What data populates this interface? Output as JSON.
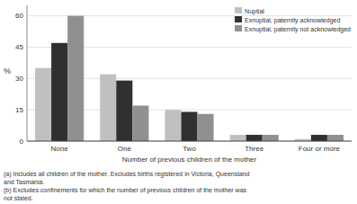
{
  "chart_data": {
    "type": "bar",
    "categories": [
      "None",
      "One",
      "Two",
      "Three",
      "Four or more"
    ],
    "series": [
      {
        "name": "Nuptial",
        "color": "#c0c0c0",
        "values": [
          35,
          32,
          15,
          3,
          1
        ]
      },
      {
        "name": "Exnuptial, paternity acknowledged",
        "color": "#303030",
        "values": [
          47,
          29,
          14,
          3,
          3
        ]
      },
      {
        "name": "Exnuptial, paternity not acknowledged",
        "color": "#909090",
        "values": [
          60,
          17,
          13,
          3,
          3
        ]
      }
    ],
    "x_label": "Number of previous children of the mother",
    "y_label": "%",
    "ylim": [
      0,
      65
    ],
    "yticks": [
      0,
      15,
      30,
      45,
      60
    ],
    "grid": true,
    "legend": "upper right",
    "annotations": [
      "(a) Includes all children of the mother. Excludes births registered in Victoria, Queensland\nand Tasmania.\n(b) Excludes confinements for which the number of previous children of the mother was\nnot stated."
    ]
  }
}
